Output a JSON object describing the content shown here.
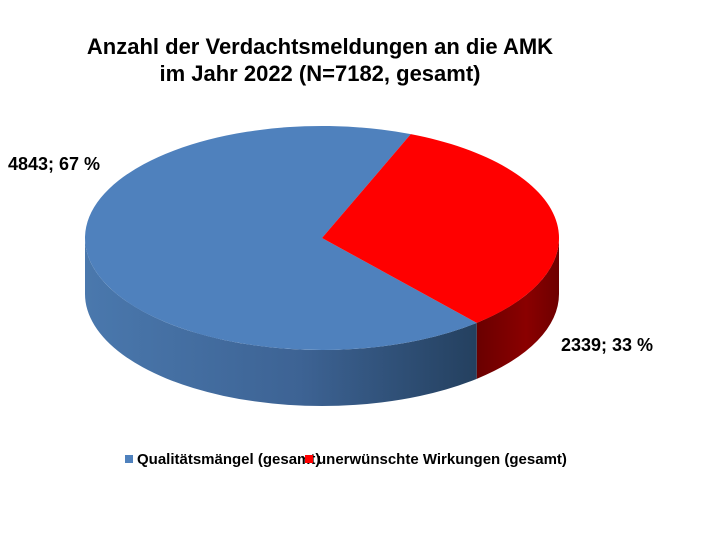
{
  "chart_data": {
    "type": "pie",
    "title_lines": [
      "Anzahl der Verdachtsmeldungen an die AMK",
      "im Jahr 2022 (N=7182, gesamt)"
    ],
    "slices": [
      {
        "name": "Qualitätsmängel (gesamt)",
        "value": 4843,
        "percent": 67,
        "label": "4843; 67 %",
        "color": "#4f81bd",
        "side_color": "#3a5f8c"
      },
      {
        "name": "unerwünschte Wirkungen (gesamt)",
        "value": 2339,
        "percent": 33,
        "label": "2339; 33 %",
        "color": "#ff0000",
        "side_color": "#8b0000"
      }
    ],
    "legend_position": "bottom",
    "three_d": true
  }
}
